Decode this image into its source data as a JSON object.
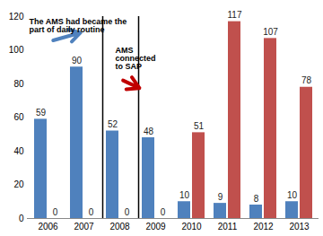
{
  "chart_data": {
    "type": "bar",
    "categories": [
      "2006",
      "2007",
      "2008",
      "2009",
      "2010",
      "2011",
      "2012",
      "2013"
    ],
    "series": [
      {
        "color": "#4F81BD",
        "values": [
          59,
          90,
          52,
          48,
          10,
          9,
          8,
          10
        ]
      },
      {
        "color": "#C0504D",
        "values": [
          0,
          0,
          0,
          0,
          51,
          117,
          107,
          78
        ]
      }
    ],
    "ylim": [
      0,
      120
    ],
    "yticks": [
      0,
      20,
      40,
      60,
      80,
      100,
      120
    ],
    "grid": false,
    "data_labels": true,
    "annotations": [
      "The AMS had became the\npart of daily routine",
      "AMS\nconnected\nto SAP"
    ]
  }
}
